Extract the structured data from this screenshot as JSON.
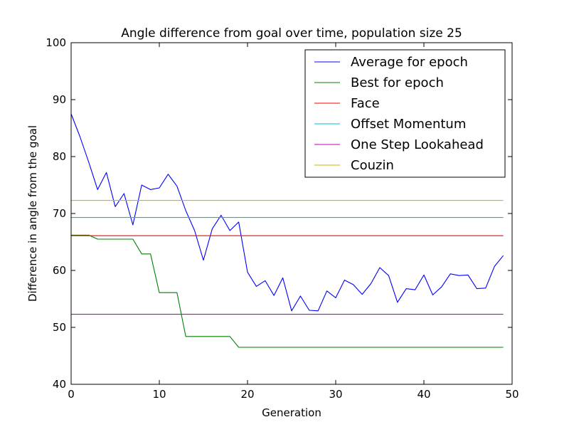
{
  "chart_data": {
    "type": "line",
    "title": "Angle difference from goal over time, population size 25",
    "xlabel": "Generation",
    "ylabel": "Difference in angle from the goal",
    "xlim": [
      0,
      50
    ],
    "ylim": [
      40,
      100
    ],
    "xticks": [
      "0",
      "10",
      "20",
      "30",
      "40",
      "50"
    ],
    "yticks": [
      "40",
      "50",
      "60",
      "70",
      "80",
      "90",
      "100"
    ],
    "grid": false,
    "legend_position": "top-right",
    "x": [
      0,
      1,
      2,
      3,
      4,
      5,
      6,
      7,
      8,
      9,
      10,
      11,
      12,
      13,
      14,
      15,
      16,
      17,
      18,
      19,
      20,
      21,
      22,
      23,
      24,
      25,
      26,
      27,
      28,
      29,
      30,
      31,
      32,
      33,
      34,
      35,
      36,
      37,
      38,
      39,
      40,
      41,
      42,
      43,
      44,
      45,
      46,
      47,
      48,
      49
    ],
    "series": [
      {
        "name": "Average for epoch",
        "color": "#0000ff",
        "values": [
          87.5,
          83.5,
          79.0,
          74.2,
          77.2,
          71.2,
          73.5,
          68.0,
          75.0,
          74.2,
          74.5,
          76.9,
          74.8,
          70.5,
          67.0,
          61.8,
          67.3,
          69.7,
          67.0,
          68.5,
          59.7,
          57.2,
          58.2,
          55.6,
          58.7,
          52.9,
          55.5,
          53.0,
          52.9,
          56.4,
          55.2,
          58.3,
          57.5,
          55.8,
          57.7,
          60.5,
          59.1,
          54.4,
          56.8,
          56.6,
          59.2,
          55.7,
          57.1,
          59.4,
          59.1,
          59.2,
          56.8,
          56.9,
          60.7,
          62.6
        ]
      },
      {
        "name": "Best for epoch",
        "color": "#008000",
        "values": [
          66.2,
          66.2,
          66.2,
          65.5,
          65.5,
          65.5,
          65.5,
          65.5,
          62.9,
          62.9,
          56.1,
          56.1,
          56.1,
          48.4,
          48.4,
          48.4,
          48.4,
          48.4,
          48.4,
          46.5,
          46.5,
          46.5,
          46.5,
          46.5,
          46.5,
          46.5,
          46.5,
          46.5,
          46.5,
          46.5,
          46.5,
          46.5,
          46.5,
          46.5,
          46.5,
          46.5,
          46.5,
          46.5,
          46.5,
          46.5,
          46.5,
          46.5,
          46.5,
          46.5,
          46.5,
          46.5,
          46.5,
          46.5,
          46.5,
          46.5
        ]
      },
      {
        "name": "Face",
        "color": "#ff0000",
        "constant": 66.1
      },
      {
        "name": "Offset Momentum",
        "color": "#00bfbf",
        "constant": 69.3
      },
      {
        "name": "One Step Lookahead",
        "color": "#bf00bf",
        "constant": 52.3
      },
      {
        "name": "Couzin",
        "color": "#bfbf00",
        "constant": 72.3
      }
    ]
  }
}
